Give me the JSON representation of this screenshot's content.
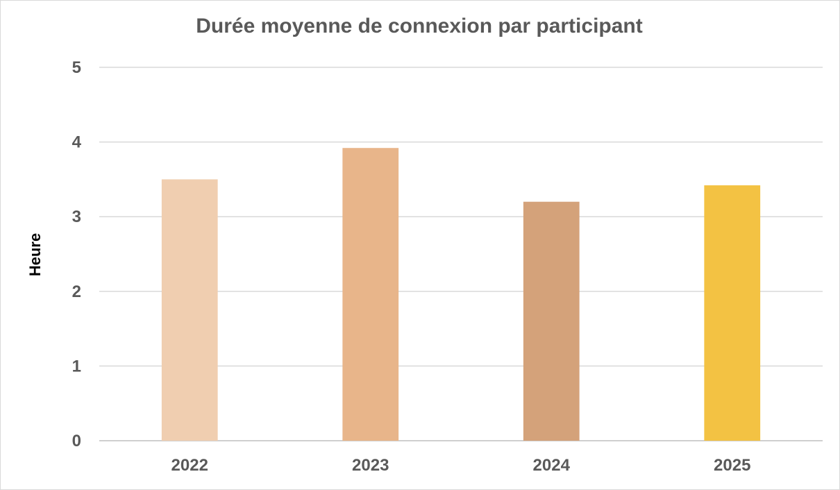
{
  "chart_data": {
    "type": "bar",
    "title": "Durée moyenne de connexion par participant",
    "xlabel": "",
    "ylabel": "Heure",
    "categories": [
      "2022",
      "2023",
      "2024",
      "2025"
    ],
    "values": [
      3.5,
      3.92,
      3.2,
      3.42
    ],
    "ylim": [
      0,
      5
    ],
    "yticks": [
      "0",
      "1",
      "2",
      "3",
      "4",
      "5"
    ],
    "grid": true,
    "legend": "none",
    "colors": [
      "#F0CEB0",
      "#E8B58A",
      "#D4A27A",
      "#F3C243"
    ],
    "gridline_color": "#D9D9D9",
    "text_color": "#595959"
  }
}
